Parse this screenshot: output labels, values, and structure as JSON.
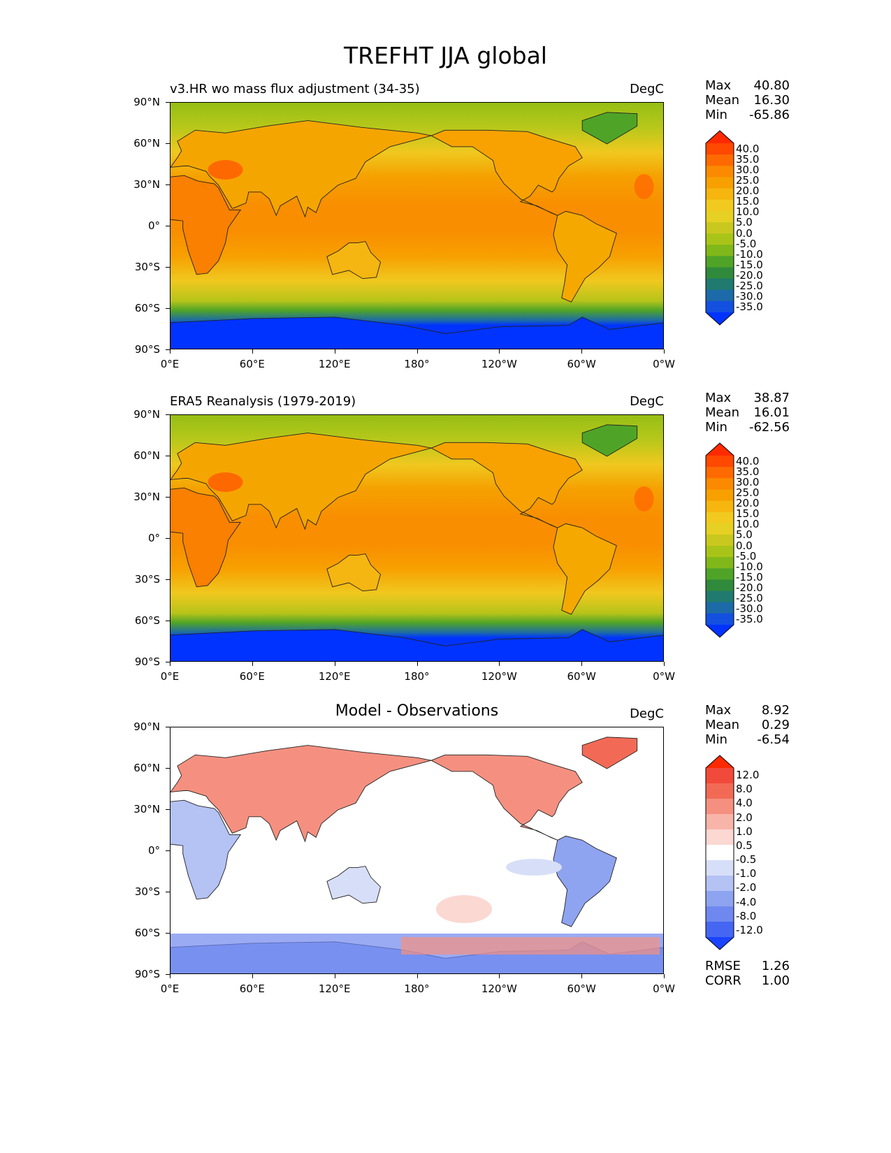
{
  "figure": {
    "title": "TREFHT JJA global"
  },
  "axes": {
    "lat_ticks": [
      "90°N",
      "60°N",
      "30°N",
      "0°",
      "30°S",
      "60°S",
      "90°S"
    ],
    "lon_ticks": [
      "0°E",
      "60°E",
      "120°E",
      "180°",
      "120°W",
      "60°W",
      "0°W"
    ]
  },
  "panels": [
    {
      "id": "model",
      "title": "v3.HR wo mass flux adjustment (34-35)",
      "units": "DegC",
      "stats": {
        "max_label": "Max",
        "max": "40.80",
        "mean_label": "Mean",
        "mean": "16.30",
        "min_label": "Min",
        "min": "-65.86"
      },
      "colorbar": {
        "levels": [
          "40.0",
          "35.0",
          "30.0",
          "25.0",
          "20.0",
          "15.0",
          "10.0",
          "5.0",
          "0.0",
          "-5.0",
          "-10.0",
          "-15.0",
          "-20.0",
          "-25.0",
          "-30.0",
          "-35.0"
        ],
        "colors": [
          "#ff2a00",
          "#ff4800",
          "#ff6a00",
          "#fb8a00",
          "#f7a000",
          "#f6b50f",
          "#f2c91f",
          "#e6d023",
          "#c9c81e",
          "#a9c418",
          "#80b81a",
          "#4fa428",
          "#2f8a3c",
          "#217a6e",
          "#1c6aa8",
          "#1450e0",
          "#0033ff"
        ]
      }
    },
    {
      "id": "obs",
      "title": "ERA5 Reanalysis (1979-2019)",
      "units": "DegC",
      "stats": {
        "max_label": "Max",
        "max": "38.87",
        "mean_label": "Mean",
        "mean": "16.01",
        "min_label": "Min",
        "min": "-62.56"
      },
      "colorbar": {
        "levels": [
          "40.0",
          "35.0",
          "30.0",
          "25.0",
          "20.0",
          "15.0",
          "10.0",
          "5.0",
          "0.0",
          "-5.0",
          "-10.0",
          "-15.0",
          "-20.0",
          "-25.0",
          "-30.0",
          "-35.0"
        ],
        "colors": [
          "#ff2a00",
          "#ff4800",
          "#ff6a00",
          "#fb8a00",
          "#f7a000",
          "#f6b50f",
          "#f2c91f",
          "#e6d023",
          "#c9c81e",
          "#a9c418",
          "#80b81a",
          "#4fa428",
          "#2f8a3c",
          "#217a6e",
          "#1c6aa8",
          "#1450e0",
          "#0033ff"
        ]
      }
    },
    {
      "id": "diff",
      "title": "Model - Observations",
      "units": "DegC",
      "stats": {
        "max_label": "Max",
        "max": "8.92",
        "mean_label": "Mean",
        "mean": "0.29",
        "min_label": "Min",
        "min": "-6.54"
      },
      "metrics": {
        "rmse_label": "RMSE",
        "rmse": "1.26",
        "corr_label": "CORR",
        "corr": "1.00"
      },
      "colorbar": {
        "levels": [
          "12.0",
          "8.0",
          "4.0",
          "2.0",
          "1.0",
          "0.5",
          "-0.5",
          "-1.0",
          "-2.0",
          "-4.0",
          "-8.0",
          "-12.0"
        ],
        "colors": [
          "#ff2a00",
          "#f24a3a",
          "#f26a55",
          "#f59080",
          "#f8b4a8",
          "#fbd8d2",
          "#ffffff",
          "#d7dff8",
          "#b4c2f4",
          "#8ea4f0",
          "#6f88f0",
          "#4466f2",
          "#1a44ff"
        ]
      }
    }
  ]
}
